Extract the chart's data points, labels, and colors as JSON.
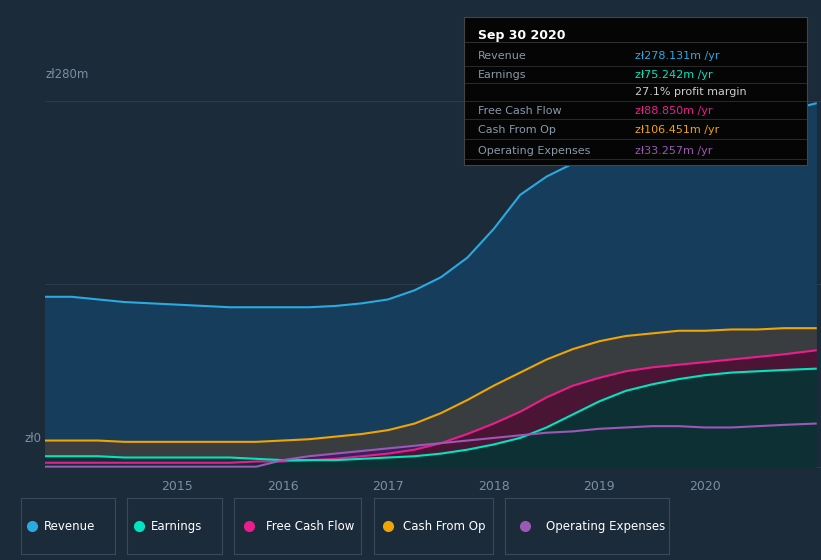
{
  "background_color": "#1c2b3a",
  "plot_bg_color": "#1c2b3a",
  "ylabel_top": "zł280m",
  "ylabel_bottom": "zł0",
  "x_ticks": [
    2015,
    2016,
    2017,
    2018,
    2019,
    2020
  ],
  "x_min": 2013.75,
  "x_max": 2021.1,
  "y_min": -5,
  "y_max": 295,
  "series": {
    "Revenue": {
      "color": "#29aae1",
      "fill_color": "#163d5c",
      "values_x": [
        2013.75,
        2014.0,
        2014.25,
        2014.5,
        2014.75,
        2015.0,
        2015.25,
        2015.5,
        2015.75,
        2016.0,
        2016.25,
        2016.5,
        2016.75,
        2017.0,
        2017.25,
        2017.5,
        2017.75,
        2018.0,
        2018.25,
        2018.5,
        2018.75,
        2019.0,
        2019.25,
        2019.5,
        2019.75,
        2020.0,
        2020.25,
        2020.5,
        2020.75,
        2021.05
      ],
      "values_y": [
        130,
        130,
        128,
        126,
        125,
        124,
        123,
        122,
        122,
        122,
        122,
        123,
        125,
        128,
        135,
        145,
        160,
        182,
        208,
        222,
        232,
        242,
        250,
        254,
        257,
        260,
        264,
        267,
        272,
        278
      ]
    },
    "Cash From Op": {
      "color": "#f0a500",
      "fill_color": "#2a2515",
      "values_x": [
        2013.75,
        2014.0,
        2014.25,
        2014.5,
        2014.75,
        2015.0,
        2015.25,
        2015.5,
        2015.75,
        2016.0,
        2016.25,
        2016.5,
        2016.75,
        2017.0,
        2017.25,
        2017.5,
        2017.75,
        2018.0,
        2018.25,
        2018.5,
        2018.75,
        2019.0,
        2019.25,
        2019.5,
        2019.75,
        2020.0,
        2020.25,
        2020.5,
        2020.75,
        2021.05
      ],
      "values_y": [
        20,
        20,
        20,
        19,
        19,
        19,
        19,
        19,
        19,
        20,
        21,
        23,
        25,
        28,
        33,
        41,
        51,
        62,
        72,
        82,
        90,
        96,
        100,
        102,
        104,
        104,
        105,
        105,
        106,
        106
      ]
    },
    "Free Cash Flow": {
      "color": "#e91e8c",
      "fill_color": "#3a1030",
      "values_x": [
        2013.75,
        2014.0,
        2014.25,
        2014.5,
        2014.75,
        2015.0,
        2015.25,
        2015.5,
        2015.75,
        2016.0,
        2016.25,
        2016.5,
        2016.75,
        2017.0,
        2017.25,
        2017.5,
        2017.75,
        2018.0,
        2018.25,
        2018.5,
        2018.75,
        2019.0,
        2019.25,
        2019.5,
        2019.75,
        2020.0,
        2020.25,
        2020.5,
        2020.75,
        2021.05
      ],
      "values_y": [
        3,
        3,
        3,
        3,
        3,
        3,
        3,
        3,
        4,
        4,
        5,
        6,
        8,
        10,
        13,
        18,
        25,
        33,
        42,
        53,
        62,
        68,
        73,
        76,
        78,
        80,
        82,
        84,
        86,
        89
      ]
    },
    "Earnings": {
      "color": "#00e5c0",
      "fill_color": "#0d3035",
      "values_x": [
        2013.75,
        2014.0,
        2014.25,
        2014.5,
        2014.75,
        2015.0,
        2015.25,
        2015.5,
        2015.75,
        2016.0,
        2016.25,
        2016.5,
        2016.75,
        2017.0,
        2017.25,
        2017.5,
        2017.75,
        2018.0,
        2018.25,
        2018.5,
        2018.75,
        2019.0,
        2019.25,
        2019.5,
        2019.75,
        2020.0,
        2020.25,
        2020.5,
        2020.75,
        2021.05
      ],
      "values_y": [
        8,
        8,
        8,
        7,
        7,
        7,
        7,
        7,
        6,
        5,
        5,
        5,
        6,
        7,
        8,
        10,
        13,
        17,
        22,
        30,
        40,
        50,
        58,
        63,
        67,
        70,
        72,
        73,
        74,
        75
      ]
    },
    "Operating Expenses": {
      "color": "#9b59b6",
      "fill_color": "#251535",
      "values_x": [
        2013.75,
        2014.0,
        2014.25,
        2014.5,
        2014.75,
        2015.0,
        2015.25,
        2015.5,
        2015.75,
        2016.0,
        2016.25,
        2016.5,
        2016.75,
        2017.0,
        2017.25,
        2017.5,
        2017.75,
        2018.0,
        2018.25,
        2018.5,
        2018.75,
        2019.0,
        2019.25,
        2019.5,
        2019.75,
        2020.0,
        2020.25,
        2020.5,
        2020.75,
        2021.05
      ],
      "values_y": [
        0,
        0,
        0,
        0,
        0,
        0,
        0,
        0,
        0,
        5,
        8,
        10,
        12,
        14,
        16,
        18,
        20,
        22,
        24,
        26,
        27,
        29,
        30,
        31,
        31,
        30,
        30,
        31,
        32,
        33
      ]
    }
  },
  "info_box": {
    "title": "Sep 30 2020",
    "rows": [
      {
        "label": "Revenue",
        "value": "zł278.131m /yr",
        "value_color": "#29aae1",
        "label_color": "#8899aa"
      },
      {
        "label": "Earnings",
        "value": "zł75.242m /yr",
        "value_color": "#00e5c0",
        "label_color": "#8899aa"
      },
      {
        "label": "",
        "value": "27.1% profit margin",
        "value_color": "#cccccc",
        "label_color": ""
      },
      {
        "label": "Free Cash Flow",
        "value": "zł88.850m /yr",
        "value_color": "#e91e8c",
        "label_color": "#8899aa"
      },
      {
        "label": "Cash From Op",
        "value": "zł106.451m /yr",
        "value_color": "#f0a500",
        "label_color": "#8899aa"
      },
      {
        "label": "Operating Expenses",
        "value": "zł33.257m /yr",
        "value_color": "#9b59b6",
        "label_color": "#8899aa"
      }
    ]
  },
  "legend": [
    {
      "label": "Revenue",
      "color": "#29aae1"
    },
    {
      "label": "Earnings",
      "color": "#00e5c0"
    },
    {
      "label": "Free Cash Flow",
      "color": "#e91e8c"
    },
    {
      "label": "Cash From Op",
      "color": "#f0a500"
    },
    {
      "label": "Operating Expenses",
      "color": "#9b59b6"
    }
  ],
  "grid_color": "#2e3f50",
  "axis_label_color": "#7a8fa0",
  "tick_label_color": "#7a8fa0"
}
